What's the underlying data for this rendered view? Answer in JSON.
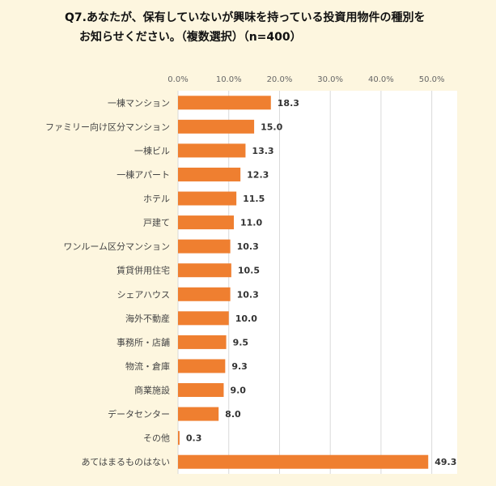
{
  "title": {
    "line1": "Q7.あなたが、保有していないが興味を持っている投資用物件の種別を",
    "line2": "お知らせください。（複数選択）（n=400）"
  },
  "colors": {
    "background": "#fdf6df",
    "plot_area": "#ffffff",
    "bar": "#ef7f30",
    "grid": "#d9d9d9"
  },
  "chart_data": {
    "type": "bar",
    "orientation": "horizontal",
    "categories": [
      "一棟マンション",
      "ファミリー向け区分マンション",
      "一棟ビル",
      "一棟アパート",
      "ホテル",
      "戸建て",
      "ワンルーム区分マンション",
      "賃貸併用住宅",
      "シェアハウス",
      "海外不動産",
      "事務所・店舗",
      "物流・倉庫",
      "商業施設",
      "データセンター",
      "その他",
      "あてはまるものはない"
    ],
    "values": [
      18.3,
      15.0,
      13.3,
      12.3,
      11.5,
      11.0,
      10.3,
      10.5,
      10.3,
      10.0,
      9.5,
      9.3,
      9.0,
      8.0,
      0.3,
      49.3
    ],
    "value_labels": [
      "18.3",
      "15.0",
      "13.3",
      "12.3",
      "11.5",
      "11.0",
      "10.3",
      "10.5",
      "10.3",
      "10.0",
      "9.5",
      "9.3",
      "9.0",
      "8.0",
      "0.3",
      "49.3"
    ],
    "x_ticks": [
      "0.0%",
      "10.0%",
      "20.0%",
      "30.0%",
      "40.0%",
      "50.0%"
    ],
    "x_tick_values": [
      0,
      10,
      20,
      30,
      40,
      50
    ],
    "xlim": [
      0,
      55
    ],
    "grid": true,
    "axis_position": "top"
  }
}
